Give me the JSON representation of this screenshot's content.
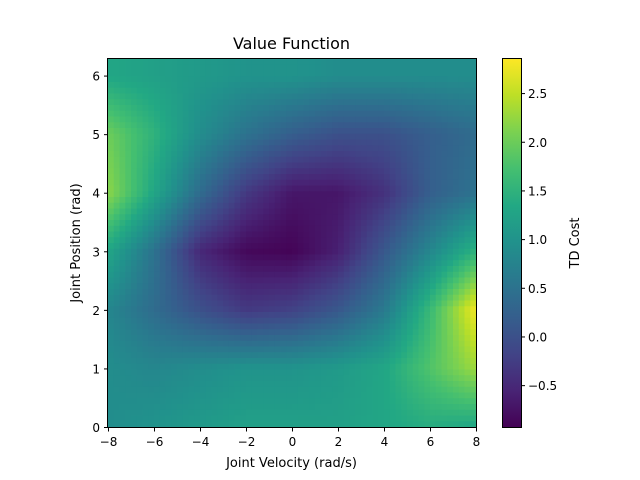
{
  "chart_data": {
    "type": "heatmap",
    "title": "Value Function",
    "xlabel": "Joint Velocity (rad/s)",
    "ylabel": "Joint Position (rad)",
    "xlim": [
      -8,
      8
    ],
    "ylim": [
      0,
      6.283
    ],
    "x_ticks": [
      "−8",
      "−6",
      "−4",
      "−2",
      "0",
      "2",
      "4",
      "6",
      "8"
    ],
    "y_ticks": [
      "0",
      "1",
      "2",
      "3",
      "4",
      "5",
      "6"
    ],
    "colormap": "viridis",
    "colorbar": {
      "label": "TD Cost",
      "range": [
        -0.93,
        2.85
      ],
      "ticks": [
        "−0.5",
        "0.0",
        "0.5",
        "1.0",
        "1.5",
        "2.0",
        "2.5"
      ],
      "tick_values": [
        -0.5,
        0.0,
        0.5,
        1.0,
        1.5,
        2.0,
        2.5
      ]
    },
    "grid": false,
    "legend": "none",
    "x_samples": [
      -8,
      -6,
      -4,
      -2,
      0,
      2,
      4,
      6,
      8
    ],
    "y_samples": [
      0,
      1,
      2,
      3,
      4,
      5,
      6
    ],
    "values": [
      [
        0.9,
        1.0,
        1.1,
        1.2,
        1.2,
        1.2,
        1.3,
        1.4,
        1.3
      ],
      [
        0.9,
        0.8,
        0.9,
        1.0,
        1.0,
        1.1,
        1.3,
        1.8,
        2.3
      ],
      [
        0.8,
        0.4,
        0.0,
        -0.3,
        -0.2,
        0.1,
        0.6,
        1.6,
        2.8
      ],
      [
        1.3,
        0.5,
        -0.5,
        -0.85,
        -0.9,
        -0.6,
        0.1,
        0.8,
        1.5
      ],
      [
        2.2,
        1.3,
        0.4,
        -0.3,
        -0.7,
        -0.7,
        -0.4,
        0.2,
        0.5
      ],
      [
        2.0,
        1.5,
        0.9,
        0.5,
        0.2,
        0.0,
        0.0,
        0.2,
        0.4
      ],
      [
        1.3,
        1.2,
        1.1,
        1.0,
        1.0,
        0.9,
        0.9,
        0.9,
        0.9
      ]
    ]
  }
}
